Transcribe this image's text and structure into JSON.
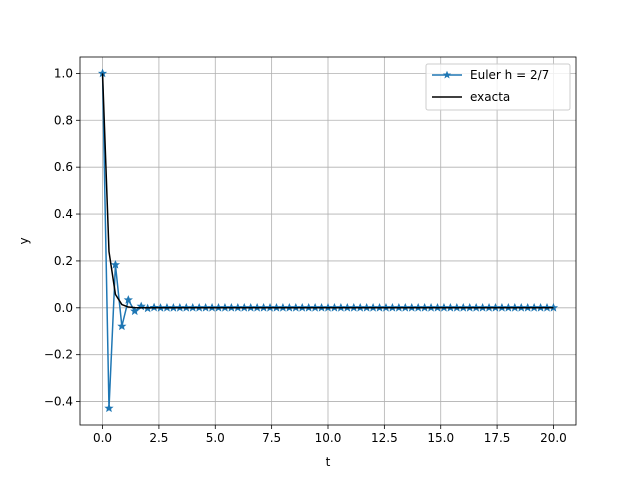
{
  "chart_data": {
    "type": "line",
    "title": "",
    "xlabel": "t",
    "ylabel": "y",
    "xlim": [
      -1.0,
      21.0
    ],
    "ylim": [
      -0.5,
      1.07
    ],
    "grid": true,
    "legend_position": "top-right",
    "x_ticks": [
      0.0,
      2.5,
      5.0,
      7.5,
      10.0,
      12.5,
      15.0,
      17.5,
      20.0
    ],
    "x_tick_labels": [
      "0.0",
      "2.5",
      "5.0",
      "7.5",
      "10.0",
      "12.5",
      "15.0",
      "17.5",
      "20.0"
    ],
    "y_ticks": [
      -0.4,
      -0.2,
      0.0,
      0.2,
      0.4,
      0.6,
      0.8,
      1.0
    ],
    "y_tick_labels": [
      "−0.4",
      "−0.2",
      "0.0",
      "0.2",
      "0.4",
      "0.6",
      "0.8",
      "1.0"
    ],
    "series": [
      {
        "name": "Euler h = 2/7",
        "color": "#1f77b4",
        "marker": "star",
        "x": [
          0,
          0.2857,
          0.5714,
          0.8571,
          1.1429,
          1.4286,
          1.7143,
          2.0,
          2.2857,
          2.5714,
          2.8571,
          3.1429,
          3.4286,
          3.7143,
          4.0,
          4.2857,
          4.5714,
          4.8571,
          5.1429,
          5.4286,
          5.7143,
          6.0,
          6.2857,
          6.5714,
          6.8571,
          7.1429,
          7.4286,
          7.7143,
          8.0,
          8.2857,
          8.5714,
          8.8571,
          9.1429,
          9.4286,
          9.7143,
          10.0,
          10.2857,
          10.5714,
          10.8571,
          11.1429,
          11.4286,
          11.7143,
          12.0,
          12.2857,
          12.5714,
          12.8571,
          13.1429,
          13.4286,
          13.7143,
          14.0,
          14.2857,
          14.5714,
          14.8571,
          15.1429,
          15.4286,
          15.7143,
          16.0,
          16.2857,
          16.5714,
          16.8571,
          17.1429,
          17.4286,
          17.7143,
          18.0,
          18.2857,
          18.5714,
          18.8571,
          19.1429,
          19.4286,
          19.7143,
          20.0
        ],
        "y": [
          1.0,
          -0.4286,
          0.1837,
          -0.0787,
          0.0337,
          -0.0145,
          0.0062,
          -0.0026,
          0.0011,
          -0.0005,
          0.0002,
          -0.0001,
          0,
          0,
          0,
          0,
          0,
          0,
          0,
          0,
          0,
          0,
          0,
          0,
          0,
          0,
          0,
          0,
          0,
          0,
          0,
          0,
          0,
          0,
          0,
          0,
          0,
          0,
          0,
          0,
          0,
          0,
          0,
          0,
          0,
          0,
          0,
          0,
          0,
          0,
          0,
          0,
          0,
          0,
          0,
          0,
          0,
          0,
          0,
          0,
          0,
          0,
          0,
          0,
          0,
          0,
          0,
          0,
          0,
          0,
          0
        ]
      },
      {
        "name": "exacta",
        "color": "#000000",
        "marker": "none",
        "x": [
          0,
          0.2857,
          0.5714,
          0.8571,
          1.1429,
          1.4286,
          1.7143,
          2.0,
          2.2857,
          2.5714,
          2.8571,
          3.1429,
          3.4286,
          3.7143,
          4.0,
          4.2857,
          4.5714,
          4.8571,
          5.1429,
          5.4286,
          5.7143,
          6.0,
          6.2857,
          6.5714,
          6.8571,
          7.1429,
          7.4286,
          7.7143,
          8.0,
          8.2857,
          8.5714,
          8.8571,
          9.1429,
          9.4286,
          9.7143,
          10.0,
          10.2857,
          10.5714,
          10.8571,
          11.1429,
          11.4286,
          11.7143,
          12.0,
          12.2857,
          12.5714,
          12.8571,
          13.1429,
          13.4286,
          13.7143,
          14.0,
          14.2857,
          14.5714,
          14.8571,
          15.1429,
          15.4286,
          15.7143,
          16.0,
          16.2857,
          16.5714,
          16.8571,
          17.1429,
          17.4286,
          17.7143,
          18.0,
          18.2857,
          18.5714,
          18.8571,
          19.1429,
          19.4286,
          19.7143,
          20.0
        ],
        "y": [
          1.0,
          0.2397,
          0.0574,
          0.0138,
          0.0033,
          0.0008,
          0.0002,
          0,
          0,
          0,
          0,
          0,
          0,
          0,
          0,
          0,
          0,
          0,
          0,
          0,
          0,
          0,
          0,
          0,
          0,
          0,
          0,
          0,
          0,
          0,
          0,
          0,
          0,
          0,
          0,
          0,
          0,
          0,
          0,
          0,
          0,
          0,
          0,
          0,
          0,
          0,
          0,
          0,
          0,
          0,
          0,
          0,
          0,
          0,
          0,
          0,
          0,
          0,
          0,
          0,
          0,
          0,
          0,
          0,
          0,
          0,
          0,
          0,
          0,
          0,
          0
        ]
      }
    ]
  }
}
